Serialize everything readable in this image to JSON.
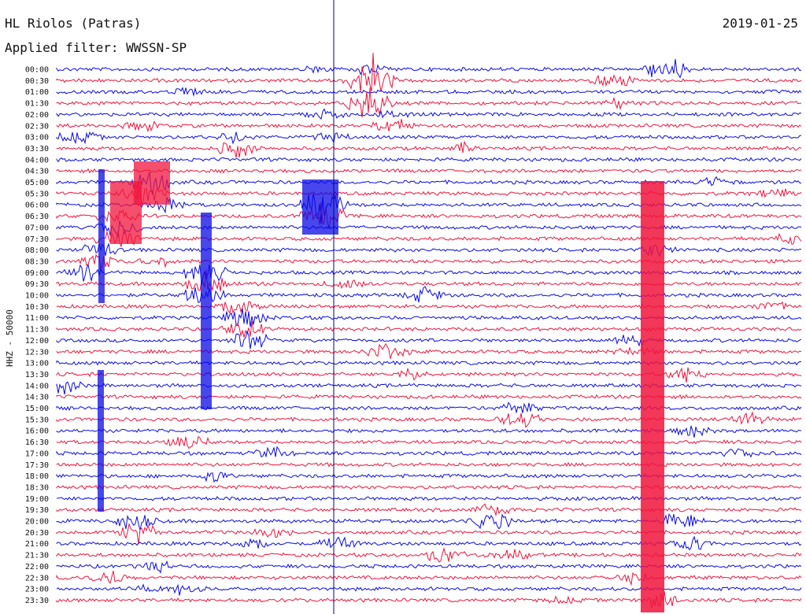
{
  "header": {
    "station": "HL Riolos (Patras)",
    "date": "2019-01-25",
    "filter": "Applied filter: WWSSN-SP"
  },
  "chart_data": {
    "type": "line",
    "ylabel": "HHZ - 50000",
    "times": [
      "00:00",
      "00:30",
      "01:00",
      "01:30",
      "02:00",
      "02:30",
      "03:00",
      "03:30",
      "04:00",
      "04:30",
      "05:00",
      "05:30",
      "06:00",
      "06:30",
      "07:00",
      "07:30",
      "08:00",
      "08:30",
      "09:00",
      "09:30",
      "10:00",
      "10:30",
      "11:00",
      "11:30",
      "12:00",
      "12:30",
      "13:00",
      "13:30",
      "14:00",
      "14:30",
      "15:00",
      "15:30",
      "16:00",
      "16:30",
      "17:00",
      "17:30",
      "18:00",
      "18:30",
      "19:00",
      "19:30",
      "20:00",
      "20:30",
      "21:00",
      "21:30",
      "22:00",
      "22:30",
      "23:00",
      "23:30"
    ],
    "colors": [
      "#0a0ae6",
      "#f0143c"
    ],
    "marker_line_color": "#000080"
  }
}
